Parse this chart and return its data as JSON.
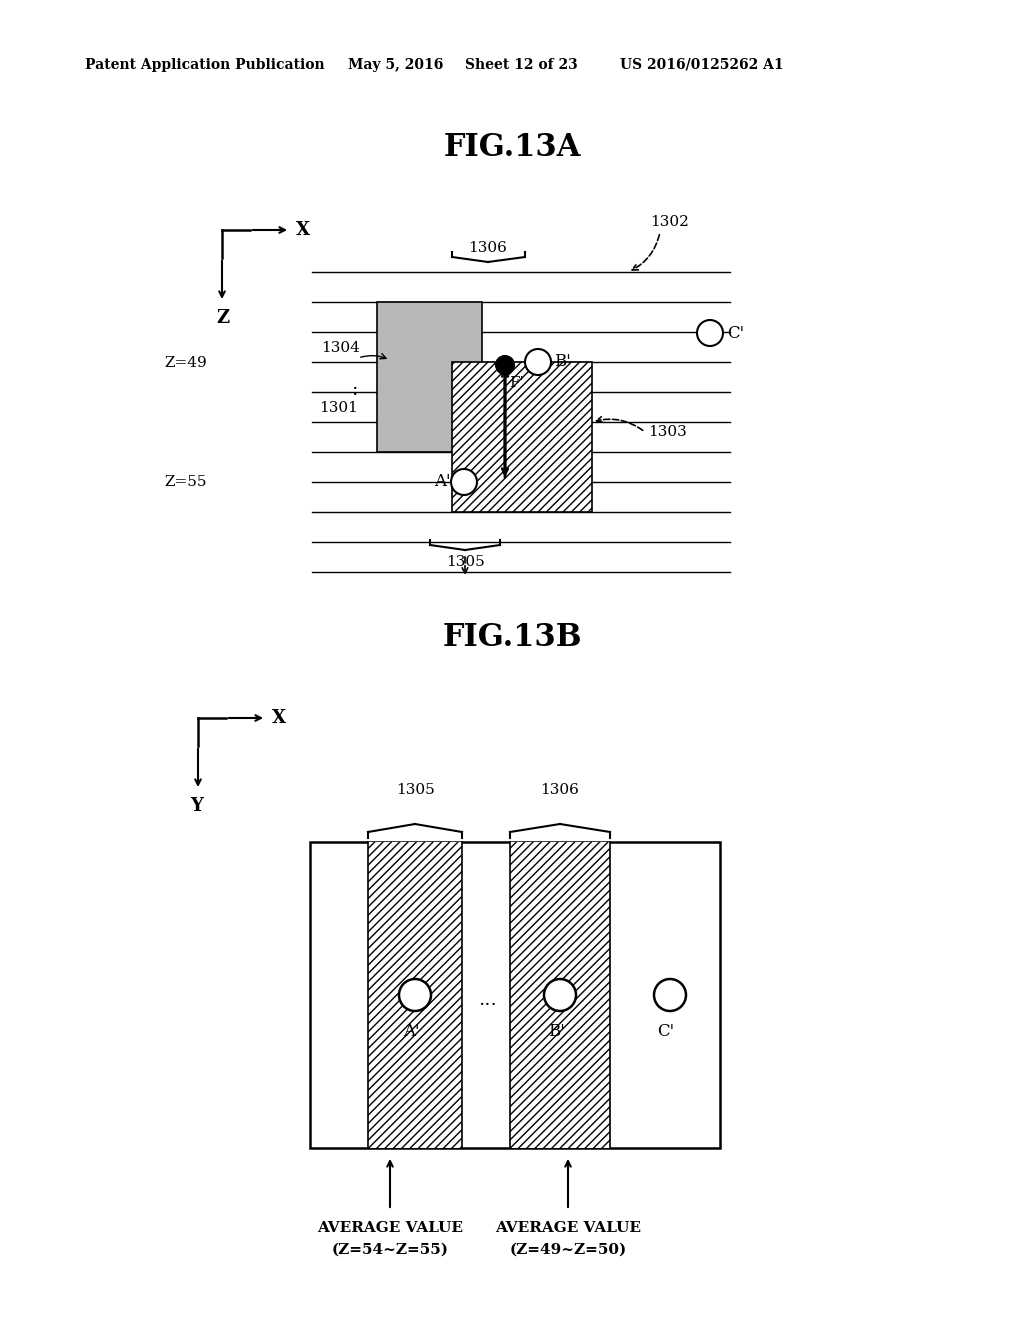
{
  "title_header": "Patent Application Publication",
  "date_header": "May 5, 2016",
  "sheet_header": "Sheet 12 of 23",
  "patent_header": "US 2016/0125262 A1",
  "fig13a_title": "FIG.13A",
  "fig13b_title": "FIG.13B",
  "bg_color": "#ffffff",
  "line_color": "#000000",
  "gray_light": "#b8b8b8",
  "gray_dark": "#808080"
}
